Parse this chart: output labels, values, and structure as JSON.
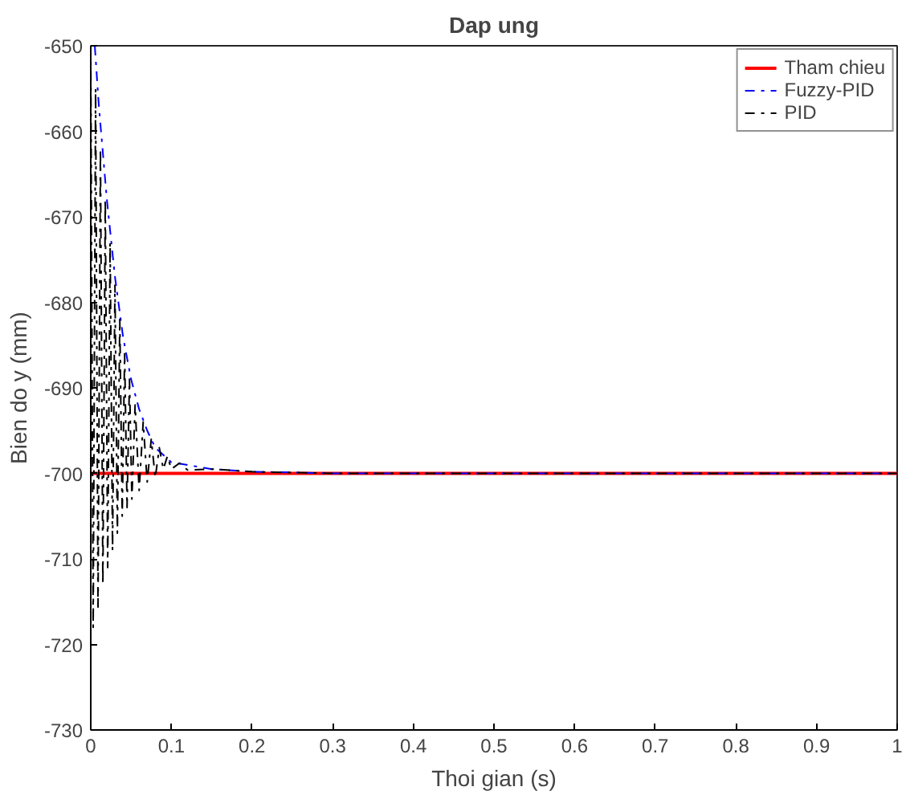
{
  "chart_data": {
    "type": "line",
    "title": "Dap ung",
    "xlabel": "Thoi gian (s)",
    "ylabel": "Bien do y (mm)",
    "xlim": [
      0,
      1
    ],
    "ylim": [
      -730,
      -650
    ],
    "xticks": [
      0,
      0.1,
      0.2,
      0.3,
      0.4,
      0.5,
      0.6,
      0.7,
      0.8,
      0.9,
      1
    ],
    "yticks": [
      -730,
      -720,
      -710,
      -700,
      -690,
      -680,
      -670,
      -660,
      -650
    ],
    "grid": false,
    "legend": "top right",
    "marker": "none",
    "series": [
      {
        "name": "Tham chieu",
        "color": "#ff0000",
        "line_style": "solid",
        "x": [
          0,
          1
        ],
        "values": [
          -700,
          -700
        ]
      },
      {
        "name": "Fuzzy-PID",
        "color": "#0000ff",
        "line_style": "dashdot",
        "x": [
          0.005,
          0.01,
          0.02,
          0.03,
          0.04,
          0.05,
          0.06,
          0.07,
          0.08,
          0.1,
          0.15,
          0.2,
          0.3,
          1
        ],
        "values": [
          -650,
          -657,
          -668,
          -677,
          -684,
          -689,
          -692.5,
          -695,
          -697,
          -698.7,
          -699.5,
          -699.8,
          -700,
          -700
        ]
      },
      {
        "name": "PID",
        "color": "#000000",
        "line_style": "dashdot",
        "x": [
          0,
          0.003,
          0.006,
          0.009,
          0.012,
          0.015,
          0.018,
          0.021,
          0.024,
          0.027,
          0.03,
          0.033,
          0.036,
          0.039,
          0.042,
          0.045,
          0.048,
          0.051,
          0.055,
          0.06,
          0.065,
          0.07,
          0.075,
          0.08,
          0.085,
          0.09,
          0.095,
          0.1,
          0.11,
          0.12,
          0.15,
          0.2,
          0.3,
          1
        ],
        "values": [
          -650,
          -718,
          -655,
          -716,
          -662,
          -713,
          -668,
          -711,
          -673,
          -709,
          -678,
          -707,
          -682,
          -705,
          -686,
          -704,
          -689,
          -703,
          -692,
          -702,
          -694,
          -701,
          -696,
          -700.5,
          -697,
          -699.5,
          -698,
          -699.5,
          -698.8,
          -699.6,
          -699.5,
          -699.8,
          -700,
          -700
        ]
      }
    ]
  }
}
